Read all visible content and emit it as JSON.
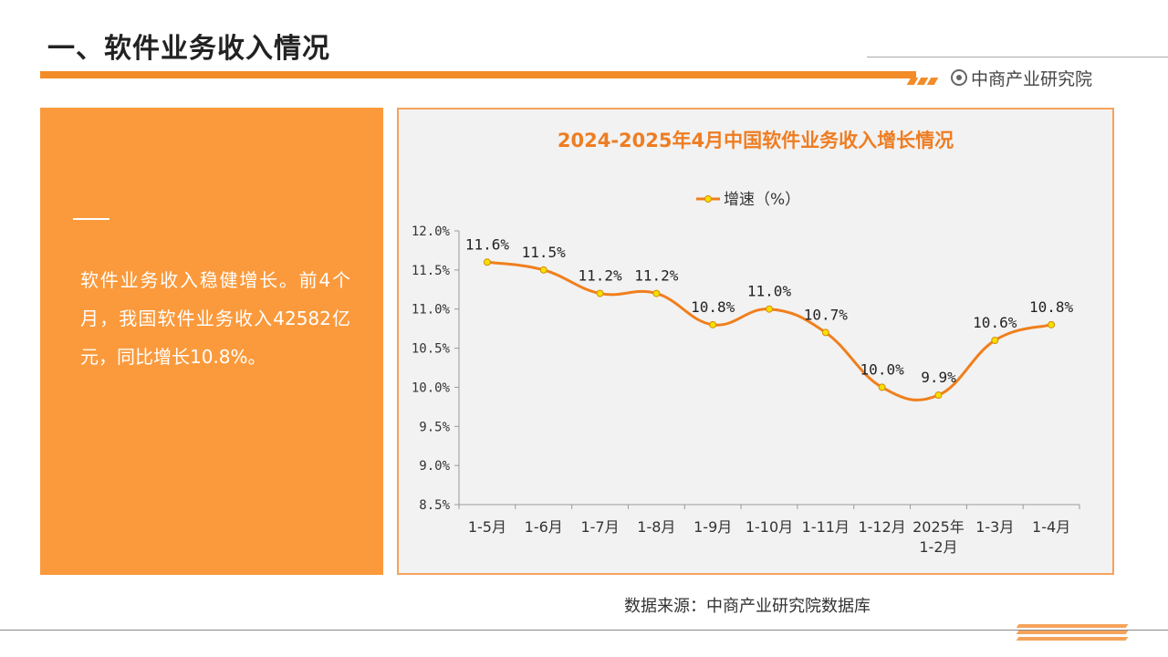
{
  "header": {
    "title": "一、软件业务收入情况",
    "brand": "中商产业研究院"
  },
  "panel": {
    "text": "软件业务收入稳健增长。前4个月，我国软件业务收入42582亿元，同比增长10.8%。"
  },
  "source": "数据来源：中商产业研究院数据库",
  "colors": {
    "accent": "#f28c28",
    "panel": "#fb9a3c",
    "line": "#f07f1c",
    "marker": "#f5e000"
  },
  "chart_data": {
    "type": "line",
    "title": "2024-2025年4月中国软件业务收入增长情况",
    "legend": "增速（%）",
    "legend_position": "top",
    "categories": [
      [
        "1-5月"
      ],
      [
        "1-6月"
      ],
      [
        "1-7月"
      ],
      [
        "1-8月"
      ],
      [
        "1-9月"
      ],
      [
        "1-10月"
      ],
      [
        "1-11月"
      ],
      [
        "1-12月"
      ],
      [
        "2025年",
        "1-2月"
      ],
      [
        "1-3月"
      ],
      [
        "1-4月"
      ]
    ],
    "series": [
      {
        "name": "增速（%）",
        "values": [
          11.6,
          11.5,
          11.2,
          11.2,
          10.8,
          11.0,
          10.7,
          10.0,
          9.9,
          10.6,
          10.8
        ],
        "labels": [
          "11.6%",
          "11.5%",
          "11.2%",
          "11.2%",
          "10.8%",
          "11.0%",
          "10.7%",
          "10.0%",
          "9.9%",
          "10.6%",
          "10.8%"
        ]
      }
    ],
    "yticks": [
      "12.0%",
      "11.5%",
      "11.0%",
      "10.5%",
      "10.0%",
      "9.5%",
      "9.0%",
      "8.5%"
    ],
    "ylim": [
      8.5,
      12.0
    ],
    "grid": false
  }
}
